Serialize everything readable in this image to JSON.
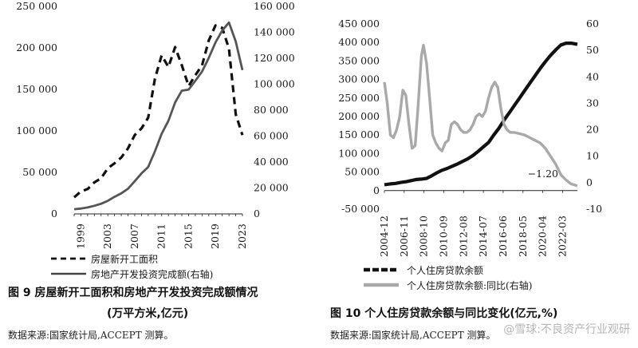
{
  "chart_data": [
    {
      "type": "line",
      "x": [
        1998,
        1999,
        2000,
        2001,
        2002,
        2003,
        2004,
        2005,
        2006,
        2007,
        2008,
        2009,
        2010,
        2011,
        2012,
        2013,
        2014,
        2015,
        2016,
        2017,
        2018,
        2019,
        2020,
        2021,
        2022,
        2023
      ],
      "x_ticks": [
        "1999",
        "2003",
        "2007",
        "2011",
        "2015",
        "2019",
        "2023"
      ],
      "y_left_ticks": [
        "0",
        "50 000",
        "100 000",
        "150 000",
        "200 000",
        "250 000"
      ],
      "y_right_ticks": [
        "0",
        "20 000",
        "40 000",
        "60 000",
        "80 000",
        "100 000",
        "120 000",
        "140 000",
        "160 000"
      ],
      "ylim_left": [
        0,
        250000
      ],
      "ylim_right": [
        0,
        160000
      ],
      "series": [
        {
          "name": "房屋新开工面积",
          "axis": "left",
          "style": "dashed",
          "values": [
            20000,
            27000,
            30000,
            38000,
            43000,
            55000,
            61000,
            68000,
            79000,
            95000,
            103000,
            116000,
            163000,
            191000,
            177000,
            201000,
            179000,
            154000,
            167000,
            179000,
            209000,
            227000,
            224000,
            199000,
            120000,
            95000
          ]
        },
        {
          "name": "房地产开发投资完成额(右轴)",
          "axis": "right",
          "style": "solid",
          "values": [
            3600,
            4100,
            5000,
            6300,
            7800,
            10100,
            13200,
            15900,
            19400,
            25300,
            31200,
            36200,
            48300,
            61800,
            71800,
            86000,
            95000,
            95900,
            102600,
            109800,
            120300,
            132200,
            141400,
            147600,
            132900,
            110900
          ]
        }
      ]
    },
    {
      "type": "line",
      "x_ticks": [
        "2004-12",
        "2006-11",
        "2008-10",
        "2010-09",
        "2012-08",
        "2014-07",
        "2016-06",
        "2018-05",
        "2020-04",
        "2022-03"
      ],
      "x_range": [
        2004.92,
        2023.6
      ],
      "y_left_ticks": [
        "-50 000",
        "0",
        "50 000",
        "100 000",
        "150 000",
        "200 000",
        "250 000",
        "300 000",
        "350 000",
        "400 000",
        "450 000"
      ],
      "y_right_ticks": [
        "-10",
        "0",
        "10",
        "20",
        "30",
        "40",
        "50",
        "60"
      ],
      "ylim_left": [
        -50000,
        450000
      ],
      "ylim_right": [
        -10,
        60
      ],
      "annotation": "−1.20",
      "series": [
        {
          "name": "个人住房贷款余额",
          "axis": "left",
          "style": "dashed-heavy",
          "points": [
            [
              2004.92,
              16000
            ],
            [
              2005.5,
              18000
            ],
            [
              2006.0,
              19500
            ],
            [
              2006.5,
              22000
            ],
            [
              2007.0,
              24000
            ],
            [
              2007.5,
              27000
            ],
            [
              2008.0,
              30000
            ],
            [
              2008.5,
              31000
            ],
            [
              2009.0,
              33000
            ],
            [
              2009.5,
              40000
            ],
            [
              2010.0,
              48000
            ],
            [
              2010.5,
              55000
            ],
            [
              2011.0,
              60000
            ],
            [
              2011.5,
              66000
            ],
            [
              2012.0,
              72000
            ],
            [
              2012.5,
              79000
            ],
            [
              2013.0,
              86000
            ],
            [
              2013.5,
              95000
            ],
            [
              2014.0,
              106000
            ],
            [
              2014.5,
              118000
            ],
            [
              2015.0,
              130000
            ],
            [
              2015.5,
              150000
            ],
            [
              2016.0,
              168000
            ],
            [
              2016.5,
              190000
            ],
            [
              2017.0,
              210000
            ],
            [
              2017.5,
              230000
            ],
            [
              2018.0,
              250000
            ],
            [
              2018.5,
              270000
            ],
            [
              2019.0,
              290000
            ],
            [
              2019.5,
              310000
            ],
            [
              2020.0,
              330000
            ],
            [
              2020.5,
              348000
            ],
            [
              2021.0,
              365000
            ],
            [
              2021.5,
              380000
            ],
            [
              2022.0,
              393000
            ],
            [
              2022.5,
              398000
            ],
            [
              2023.0,
              398000
            ],
            [
              2023.6,
              395000
            ]
          ]
        },
        {
          "name": "个人住房贷款余额:同比(右轴)",
          "axis": "right",
          "style": "solid-gray",
          "points": [
            [
              2004.92,
              38
            ],
            [
              2005.2,
              30
            ],
            [
              2005.5,
              18
            ],
            [
              2005.8,
              17
            ],
            [
              2006.1,
              20
            ],
            [
              2006.4,
              25
            ],
            [
              2006.7,
              35
            ],
            [
              2007.0,
              33
            ],
            [
              2007.3,
              22
            ],
            [
              2007.6,
              13
            ],
            [
              2007.9,
              14
            ],
            [
              2008.2,
              30
            ],
            [
              2008.5,
              48
            ],
            [
              2008.7,
              52
            ],
            [
              2009.0,
              45
            ],
            [
              2009.3,
              32
            ],
            [
              2009.6,
              18
            ],
            [
              2009.9,
              15
            ],
            [
              2010.2,
              13
            ],
            [
              2010.5,
              12
            ],
            [
              2010.8,
              15
            ],
            [
              2011.1,
              16
            ],
            [
              2011.4,
              22
            ],
            [
              2011.7,
              23
            ],
            [
              2012.0,
              22
            ],
            [
              2012.3,
              20
            ],
            [
              2012.6,
              19
            ],
            [
              2012.9,
              19
            ],
            [
              2013.2,
              20
            ],
            [
              2013.5,
              22
            ],
            [
              2013.8,
              25
            ],
            [
              2014.1,
              26
            ],
            [
              2014.4,
              25
            ],
            [
              2014.7,
              27
            ],
            [
              2015.0,
              32
            ],
            [
              2015.3,
              36
            ],
            [
              2015.6,
              38
            ],
            [
              2015.9,
              36
            ],
            [
              2016.2,
              28
            ],
            [
              2016.5,
              22
            ],
            [
              2016.8,
              20
            ],
            [
              2017.1,
              19
            ],
            [
              2017.5,
              19
            ],
            [
              2018.0,
              18.5
            ],
            [
              2018.5,
              18
            ],
            [
              2019.0,
              17
            ],
            [
              2019.5,
              16
            ],
            [
              2020.0,
              15
            ],
            [
              2020.5,
              13
            ],
            [
              2021.0,
              10
            ],
            [
              2021.5,
              7
            ],
            [
              2022.0,
              3
            ],
            [
              2022.5,
              1
            ],
            [
              2023.0,
              -0.5
            ],
            [
              2023.6,
              -1.2
            ]
          ]
        }
      ]
    }
  ],
  "left": {
    "legend": [
      "房屋新开工面积",
      "房地产开发投资完成额(右轴)"
    ],
    "caption_line1": "图 9  房屋新开工面积和房地产开发投资完成额情况",
    "caption_line2": "(万平方米,亿元)",
    "source": "数据来源:国家统计局,ACCEPT 测算。"
  },
  "right": {
    "legend": [
      "个人住房贷款余额",
      "个人住房贷款余额:同比(右轴)"
    ],
    "caption": "图 10  个人住房贷款余额与同比变化(亿元,%)",
    "source": "数据来源:国家统计局,ACCEPT 测算。"
  },
  "watermark": "@雪球:不良资产行业观研"
}
